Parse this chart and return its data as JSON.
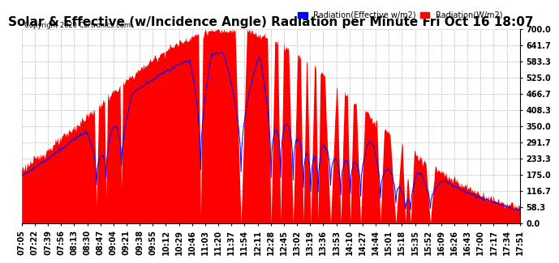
{
  "title": "Solar & Effective (w/Incidence Angle) Radiation per Minute Fri Oct 16 18:07",
  "copyright": "Copyright 2020 Cartronics.com",
  "legend_blue": "Radiation(Effective w/m2)",
  "legend_red": "Radiation(W/m2)",
  "ymin": 0.0,
  "ymax": 700.0,
  "yticks": [
    0.0,
    58.3,
    116.7,
    175.0,
    233.3,
    291.7,
    350.0,
    408.3,
    466.7,
    525.0,
    583.3,
    641.7,
    700.0
  ],
  "background_color": "#ffffff",
  "grid_color": "#bbbbbb",
  "bar_color": "#ff0000",
  "line_color": "#0000ff",
  "title_fontsize": 11,
  "tick_fontsize": 7,
  "time_labels": [
    "07:05",
    "07:22",
    "07:39",
    "07:56",
    "08:13",
    "08:30",
    "08:47",
    "09:04",
    "09:21",
    "09:38",
    "09:55",
    "10:12",
    "10:29",
    "10:46",
    "11:03",
    "11:20",
    "11:37",
    "11:54",
    "12:11",
    "12:28",
    "12:45",
    "13:02",
    "13:19",
    "13:36",
    "13:53",
    "14:10",
    "14:27",
    "14:44",
    "15:01",
    "15:18",
    "15:35",
    "15:52",
    "16:09",
    "16:26",
    "16:43",
    "17:00",
    "17:17",
    "17:34",
    "17:51"
  ]
}
